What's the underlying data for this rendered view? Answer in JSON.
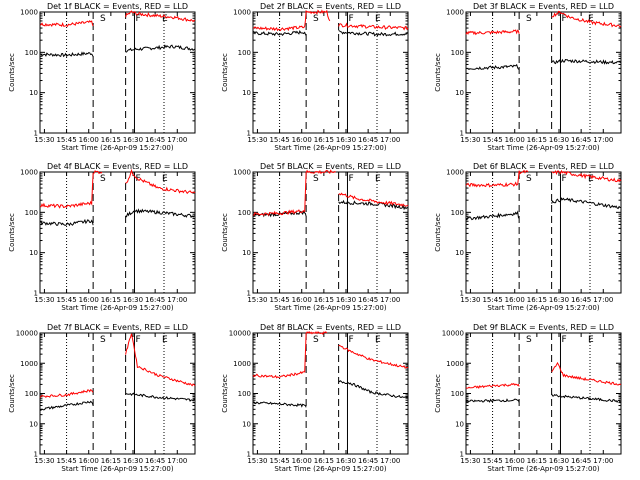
{
  "chart_data": {
    "type": "line",
    "xlabel": "Start Time (26-Apr-09 15:27:00)",
    "ylabel": "Counts/sec",
    "x_ticks": [
      "15:30",
      "15:45",
      "16:00",
      "16:15",
      "16:30",
      "16:45",
      "17:00"
    ],
    "y_ticks": [
      "1",
      "10",
      "100",
      "1000",
      "10000"
    ],
    "yscale": "log",
    "ylim": [
      1,
      1000
    ],
    "xlim_minutes": [
      0,
      105
    ],
    "event_lines_minutes": [
      36,
      58
    ],
    "marker_lines_minutes": [
      40,
      64,
      82
    ],
    "dotted_lines_minutes": [
      18,
      84
    ],
    "markers": [
      "S",
      "F",
      "E"
    ],
    "series_colors": {
      "events": "#000000",
      "lld": "#ff0000"
    },
    "panels": [
      {
        "title": "Det 1f BLACK = Events, RED = LLD",
        "ylim": [
          1,
          1000
        ],
        "y_ticks": [
          "1",
          "10",
          "100",
          "1000"
        ],
        "series": [
          {
            "name": "Events",
            "segments": [
              [
                [
                  0,
                  90
                ],
                [
                  18,
                  85
                ],
                [
                  35,
                  95
                ],
                [
                  36,
                  78
                ]
              ],
              [
                [
                  58,
                  110
                ],
                [
                  66,
                  120
                ],
                [
                  80,
                  130
                ],
                [
                  90,
                  140
                ],
                [
                  105,
                  120
                ]
              ]
            ]
          },
          {
            "name": "LLD",
            "segments": [
              [
                [
                  0,
                  500
                ],
                [
                  18,
                  480
                ],
                [
                  35,
                  560
                ],
                [
                  36,
                  450
                ]
              ],
              [
                [
                  58,
                  800
                ],
                [
                  62,
                  1000
                ],
                [
                  66,
                  900
                ],
                [
                  80,
                  800
                ],
                [
                  90,
                  750
                ],
                [
                  105,
                  600
                ]
              ]
            ]
          }
        ]
      },
      {
        "title": "Det 2f BLACK = Events, RED = LLD",
        "ylim": [
          1,
          1000
        ],
        "y_ticks": [
          "1",
          "10",
          "100",
          "1000"
        ],
        "series": [
          {
            "name": "Events",
            "segments": [
              [
                [
                  0,
                  300
                ],
                [
                  18,
                  280
                ],
                [
                  35,
                  320
                ],
                [
                  36,
                  260
                ]
              ],
              [
                [
                  58,
                  320
                ],
                [
                  70,
                  300
                ],
                [
                  85,
                  280
                ],
                [
                  105,
                  290
                ]
              ]
            ]
          },
          {
            "name": "LLD",
            "segments": [
              [
                [
                  0,
                  400
                ],
                [
                  18,
                  380
                ],
                [
                  35,
                  420
                ],
                [
                  36,
                  1000
                ],
                [
                  50,
                  1000
                ],
                [
                  52,
                  600
                ]
              ],
              [
                [
                  58,
                  480
                ],
                [
                  70,
                  450
                ],
                [
                  85,
                  420
                ],
                [
                  105,
                  400
                ]
              ]
            ]
          }
        ]
      },
      {
        "title": "Det 3f BLACK = Events, RED = LLD",
        "ylim": [
          1,
          1000
        ],
        "y_ticks": [
          "1",
          "10",
          "100",
          "1000"
        ],
        "series": [
          {
            "name": "Events",
            "segments": [
              [
                [
                  0,
                  40
                ],
                [
                  18,
                  42
                ],
                [
                  35,
                  45
                ],
                [
                  36,
                  38
                ]
              ],
              [
                [
                  58,
                  55
                ],
                [
                  66,
                  62
                ],
                [
                  80,
                  60
                ],
                [
                  105,
                  55
                ]
              ]
            ]
          },
          {
            "name": "LLD",
            "segments": [
              [
                [
                  0,
                  300
                ],
                [
                  18,
                  310
                ],
                [
                  35,
                  330
                ],
                [
                  36,
                  290
                ]
              ],
              [
                [
                  58,
                  800
                ],
                [
                  64,
                  1000
                ],
                [
                  70,
                  750
                ],
                [
                  85,
                  550
                ],
                [
                  105,
                  450
                ]
              ]
            ]
          }
        ]
      },
      {
        "title": "Det 4f BLACK = Events, RED = LLD",
        "ylim": [
          1,
          1000
        ],
        "y_ticks": [
          "1",
          "10",
          "100",
          "1000"
        ],
        "series": [
          {
            "name": "Events",
            "segments": [
              [
                [
                  0,
                  55
                ],
                [
                  18,
                  50
                ],
                [
                  35,
                  62
                ],
                [
                  36,
                  48
                ]
              ],
              [
                [
                  58,
                  80
                ],
                [
                  64,
                  110
                ],
                [
                  80,
                  100
                ],
                [
                  105,
                  80
                ]
              ]
            ]
          },
          {
            "name": "LLD",
            "segments": [
              [
                [
                  0,
                  150
                ],
                [
                  18,
                  140
                ],
                [
                  35,
                  170
                ],
                [
                  36,
                  1000
                ],
                [
                  42,
                  1000
                ]
              ],
              [
                [
                  58,
                  500
                ],
                [
                  62,
                  1000
                ],
                [
                  66,
                  700
                ],
                [
                  80,
                  400
                ],
                [
                  105,
                  300
                ]
              ]
            ]
          }
        ]
      },
      {
        "title": "Det 5f BLACK = Events, RED = LLD",
        "ylim": [
          1,
          1000
        ],
        "y_ticks": [
          "1",
          "10",
          "100",
          "1000"
        ],
        "series": [
          {
            "name": "Events",
            "segments": [
              [
                [
                  0,
                  85
                ],
                [
                  18,
                  90
                ],
                [
                  35,
                  100
                ],
                [
                  36,
                  80
                ]
              ],
              [
                [
                  58,
                  180
                ],
                [
                  70,
                  170
                ],
                [
                  85,
                  160
                ],
                [
                  105,
                  130
                ]
              ]
            ]
          },
          {
            "name": "LLD",
            "segments": [
              [
                [
                  0,
                  90
                ],
                [
                  18,
                  95
                ],
                [
                  35,
                  110
                ],
                [
                  36,
                  1000
                ],
                [
                  56,
                  1000
                ]
              ],
              [
                [
                  58,
                  300
                ],
                [
                  70,
                  220
                ],
                [
                  85,
                  180
                ],
                [
                  105,
                  150
                ]
              ]
            ]
          }
        ]
      },
      {
        "title": "Det 6f BLACK = Events, RED = LLD",
        "ylim": [
          1,
          1000
        ],
        "y_ticks": [
          "1",
          "10",
          "100",
          "1000"
        ],
        "series": [
          {
            "name": "Events",
            "segments": [
              [
                [
                  0,
                  70
                ],
                [
                  18,
                  80
                ],
                [
                  35,
                  95
                ],
                [
                  36,
                  70
                ]
              ],
              [
                [
                  58,
                  180
                ],
                [
                  66,
                  210
                ],
                [
                  80,
                  180
                ],
                [
                  105,
                  130
                ]
              ]
            ]
          },
          {
            "name": "LLD",
            "segments": [
              [
                [
                  0,
                  480
                ],
                [
                  18,
                  470
                ],
                [
                  35,
                  500
                ],
                [
                  36,
                  1000
                ],
                [
                  42,
                  1000
                ]
              ],
              [
                [
                  58,
                  950
                ],
                [
                  64,
                  1000
                ],
                [
                  80,
                  800
                ],
                [
                  105,
                  600
                ]
              ]
            ]
          }
        ]
      },
      {
        "title": "Det 7f BLACK = Events, RED = LLD",
        "ylim": [
          1,
          10000
        ],
        "y_ticks": [
          "1",
          "10",
          "100",
          "1000",
          "10000"
        ],
        "series": [
          {
            "name": "Events",
            "segments": [
              [
                [
                  0,
                  30
                ],
                [
                  18,
                  40
                ],
                [
                  35,
                  55
                ],
                [
                  36,
                  40
                ]
              ],
              [
                [
                  58,
                  100
                ],
                [
                  66,
                  90
                ],
                [
                  80,
                  75
                ],
                [
                  105,
                  60
                ]
              ]
            ]
          },
          {
            "name": "LLD",
            "segments": [
              [
                [
                  0,
                  80
                ],
                [
                  18,
                  90
                ],
                [
                  35,
                  130
                ],
                [
                  36,
                  110
                ]
              ],
              [
                [
                  58,
                  2000
                ],
                [
                  62,
                  10000
                ],
                [
                  66,
                  800
                ],
                [
                  80,
                  400
                ],
                [
                  105,
                  180
                ]
              ]
            ]
          }
        ]
      },
      {
        "title": "Det 8f BLACK = Events, RED = LLD",
        "ylim": [
          1,
          10000
        ],
        "y_ticks": [
          "1",
          "10",
          "100",
          "1000",
          "10000"
        ],
        "series": [
          {
            "name": "Events",
            "segments": [
              [
                [
                  0,
                  50
                ],
                [
                  18,
                  45
                ],
                [
                  35,
                  40
                ],
                [
                  36,
                  35
                ]
              ],
              [
                [
                  58,
                  250
                ],
                [
                  66,
                  220
                ],
                [
                  80,
                  110
                ],
                [
                  105,
                  70
                ]
              ]
            ]
          },
          {
            "name": "LLD",
            "segments": [
              [
                [
                  0,
                  400
                ],
                [
                  18,
                  350
                ],
                [
                  35,
                  500
                ],
                [
                  36,
                  10000
                ],
                [
                  50,
                  10000
                ]
              ],
              [
                [
                  58,
                  4000
                ],
                [
                  66,
                  2500
                ],
                [
                  80,
                  1300
                ],
                [
                  105,
                  700
                ]
              ]
            ]
          }
        ]
      },
      {
        "title": "Det 9f BLACK = Events, RED = LLD",
        "ylim": [
          1,
          10000
        ],
        "y_ticks": [
          "1",
          "10",
          "100",
          "1000",
          "10000"
        ],
        "series": [
          {
            "name": "Events",
            "segments": [
              [
                [
                  0,
                  55
                ],
                [
                  18,
                  58
                ],
                [
                  35,
                  60
                ],
                [
                  36,
                  50
                ]
              ],
              [
                [
                  58,
                  90
                ],
                [
                  66,
                  80
                ],
                [
                  80,
                  70
                ],
                [
                  105,
                  55
                ]
              ]
            ]
          },
          {
            "name": "LLD",
            "segments": [
              [
                [
                  0,
                  150
                ],
                [
                  18,
                  180
                ],
                [
                  35,
                  200
                ],
                [
                  36,
                  170
                ]
              ],
              [
                [
                  58,
                  500
                ],
                [
                  62,
                  1000
                ],
                [
                  66,
                  400
                ],
                [
                  80,
                  300
                ],
                [
                  105,
                  200
                ]
              ]
            ]
          }
        ]
      }
    ]
  }
}
